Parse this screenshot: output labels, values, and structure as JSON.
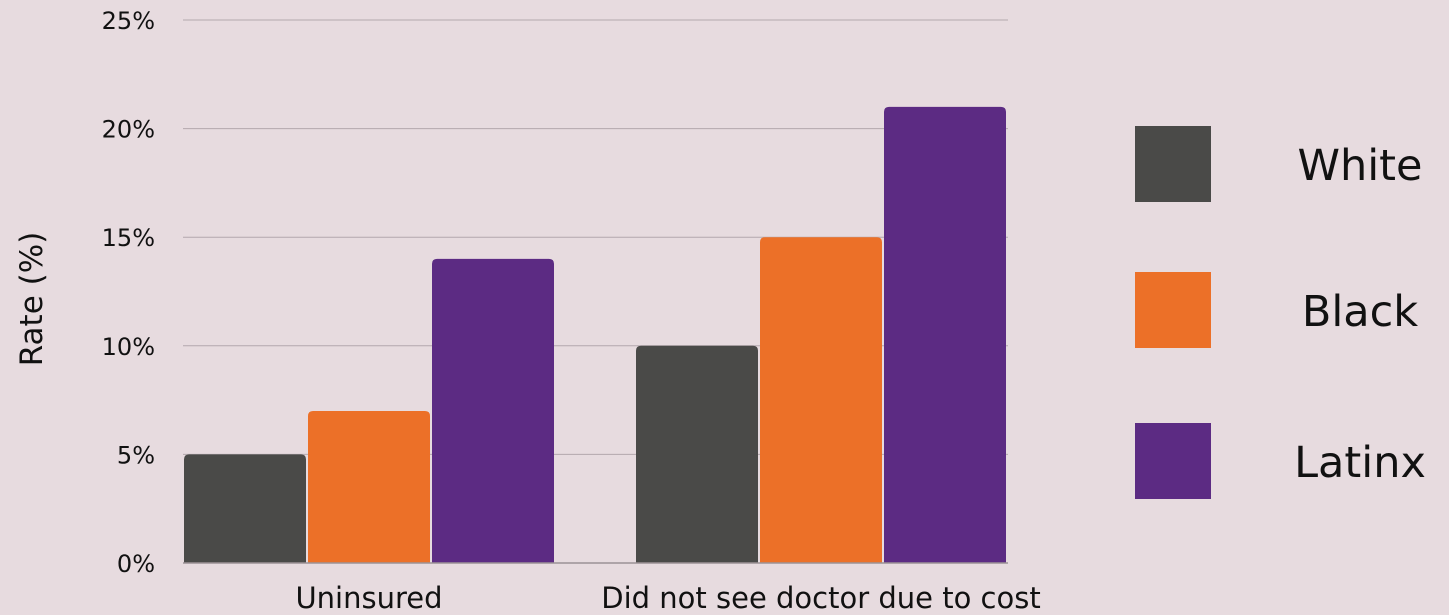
{
  "chart_data": {
    "type": "bar",
    "title": "",
    "xlabel": "",
    "ylabel": "Rate (%)",
    "categories": [
      "Uninsured",
      "Did not see doctor due to cost"
    ],
    "series": [
      {
        "name": "White",
        "color": "#4a4a48",
        "values": [
          5,
          10
        ]
      },
      {
        "name": "Black",
        "color": "#ec7028",
        "values": [
          7,
          15
        ]
      },
      {
        "name": "Latinx",
        "color": "#5c2b83",
        "values": [
          14,
          21
        ]
      }
    ],
    "ylim": [
      0,
      25
    ],
    "yticks": [
      0,
      5,
      10,
      15,
      20,
      25
    ],
    "ytick_labels": [
      "0%",
      "5%",
      "10%",
      "15%",
      "20%",
      "25%"
    ],
    "grid": true,
    "legend_position": "right"
  }
}
